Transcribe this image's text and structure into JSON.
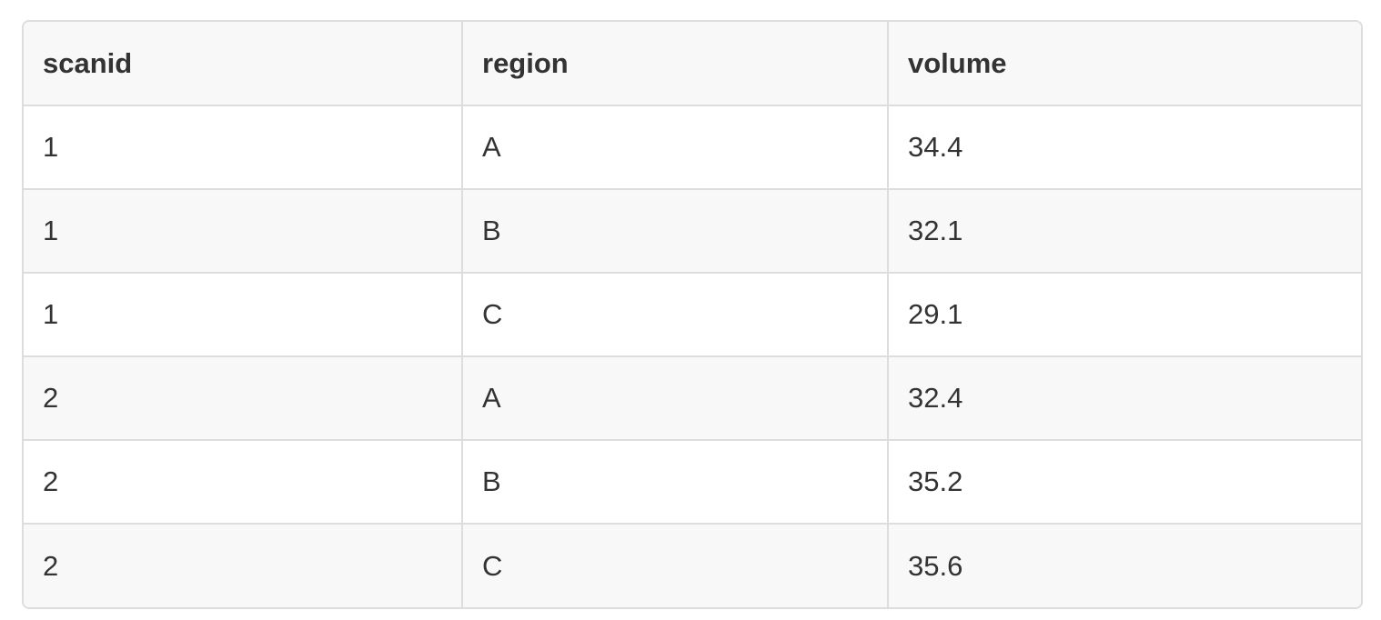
{
  "table": {
    "columns": [
      "scanid",
      "region",
      "volume"
    ],
    "rows": [
      [
        "1",
        "A",
        "34.4"
      ],
      [
        "1",
        "B",
        "32.1"
      ],
      [
        "1",
        "C",
        "29.1"
      ],
      [
        "2",
        "A",
        "32.4"
      ],
      [
        "2",
        "B",
        "35.2"
      ],
      [
        "2",
        "C",
        "35.6"
      ]
    ]
  }
}
